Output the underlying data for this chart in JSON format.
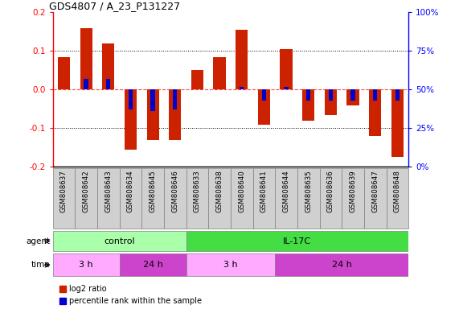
{
  "title": "GDS4807 / A_23_P131227",
  "samples": [
    "GSM808637",
    "GSM808642",
    "GSM808643",
    "GSM808634",
    "GSM808645",
    "GSM808646",
    "GSM808633",
    "GSM808638",
    "GSM808640",
    "GSM808641",
    "GSM808644",
    "GSM808635",
    "GSM808636",
    "GSM808639",
    "GSM808647",
    "GSM808648"
  ],
  "log2_ratio": [
    0.085,
    0.16,
    0.12,
    -0.155,
    -0.13,
    -0.13,
    0.05,
    0.085,
    0.155,
    -0.09,
    0.105,
    -0.08,
    -0.065,
    -0.04,
    -0.12,
    -0.175
  ],
  "percentile_rank": [
    50,
    57,
    57,
    37,
    36,
    37,
    50,
    50,
    52,
    43,
    52,
    43,
    43,
    43,
    43,
    43
  ],
  "agent_groups": [
    {
      "label": "control",
      "start": 0,
      "end": 6,
      "color": "#AAFFAA"
    },
    {
      "label": "IL-17C",
      "start": 6,
      "end": 16,
      "color": "#44DD44"
    }
  ],
  "time_groups": [
    {
      "label": "3 h",
      "start": 0,
      "end": 3,
      "color": "#FFAAFF"
    },
    {
      "label": "24 h",
      "start": 3,
      "end": 6,
      "color": "#CC44CC"
    },
    {
      "label": "3 h",
      "start": 6,
      "end": 10,
      "color": "#FFAAFF"
    },
    {
      "label": "24 h",
      "start": 10,
      "end": 16,
      "color": "#CC44CC"
    }
  ],
  "ylim": [
    -0.2,
    0.2
  ],
  "yticks_left": [
    -0.2,
    -0.1,
    0.0,
    0.1,
    0.2
  ],
  "bar_color_red": "#CC2200",
  "bar_color_blue": "#0000CC",
  "zero_line_color": "#FF4444",
  "dotted_line_color": "#000000",
  "sample_bg": "#D0D0D0"
}
